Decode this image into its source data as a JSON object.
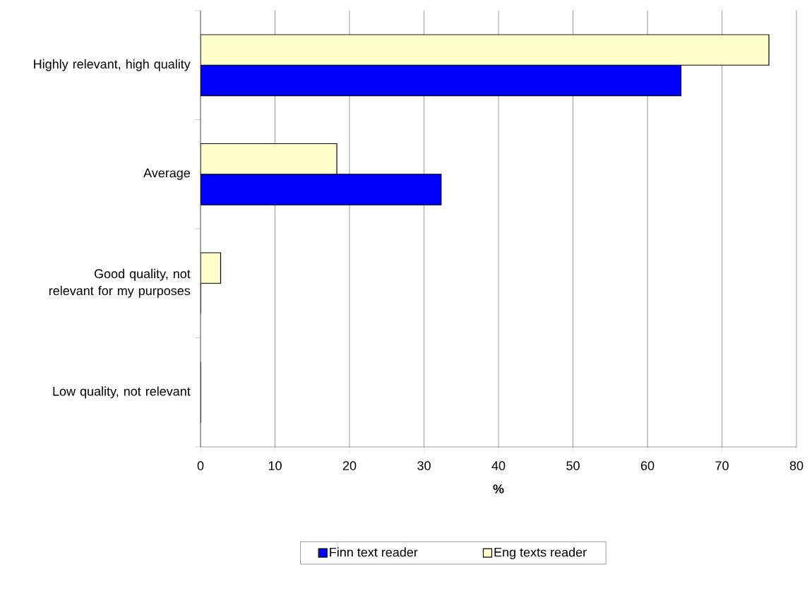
{
  "chart_data": {
    "type": "bar",
    "orientation": "horizontal",
    "xlabel": "%",
    "categories": [
      "Highly relevant, high quality",
      "Average",
      "Good quality, not relevant for my purposes",
      "Low quality, not relevant"
    ],
    "series": [
      {
        "name": "Finn text reader",
        "color": "#0000ff",
        "values": [
          64.5,
          32.3,
          0,
          0
        ]
      },
      {
        "name": "Eng texts reader",
        "color": "#ffffcc",
        "values": [
          76.3,
          18.3,
          2.7,
          0
        ]
      }
    ],
    "xlim": [
      0,
      80
    ],
    "xticks": [
      0,
      10,
      20,
      30,
      40,
      50,
      60,
      70,
      80
    ],
    "grid": "x",
    "legend": "bottom"
  }
}
